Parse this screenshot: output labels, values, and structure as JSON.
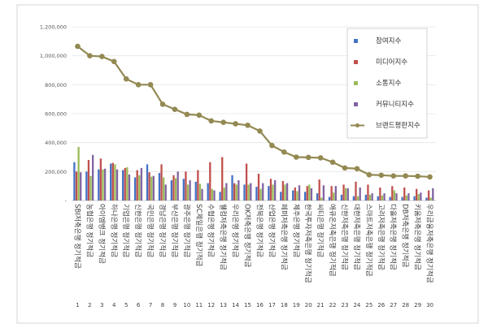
{
  "chart_data": {
    "type": "bar",
    "ylim": [
      0,
      1200000
    ],
    "y_ticks": [
      0,
      200000,
      400000,
      600000,
      800000,
      1000000,
      1200000
    ],
    "y_tick_labels": [
      "-",
      "200,000",
      "400,000",
      "600,000",
      "800,000",
      "1,000,000",
      "1,200,000"
    ],
    "grid": "horizontal",
    "legend_position": "right",
    "categories": [
      "SBI저축은행 정기적금",
      "농협은행 정기적금",
      "아이엠뱅크 정기적금",
      "하나은행 정기적금",
      "기업은행 정기적금",
      "신한은행 정기적금",
      "국민은행 정기적금",
      "경남은행 정기적금",
      "부산은행 정기적금",
      "광주은행 정기적금",
      "SC제일은행 정기적금",
      "수협은행 정기적금",
      "웰컴저축은행 정기적금",
      "우리은행 정기적금",
      "OK저축은행 정기적금",
      "전북은행 정기적금",
      "산업은행 정기적금",
      "페퍼저축은행 정기적금",
      "제주은행 정기적금",
      "한국투자저축은행 정기적금",
      "씨티은행 정기적금",
      "애큐온저축은행 정기적금",
      "신한저축은행 정기적금",
      "대한저축은행 정기적금",
      "스마트저축은행 정기적금",
      "고려저축은행 정기적금",
      "다올저축은행 정기적금",
      "DB저축은행 정기적금",
      "키움저축은행 정기적금",
      "우리금융저축은행 정기적금"
    ],
    "category_numbers": [
      "1",
      "2",
      "3",
      "4",
      "5",
      "6",
      "7",
      "8",
      "9",
      "10",
      "11",
      "12",
      "13",
      "14",
      "15",
      "16",
      "17",
      "18",
      "19",
      "20",
      "21",
      "22",
      "23",
      "24",
      "25",
      "26",
      "27",
      "28",
      "29",
      "30"
    ],
    "series": [
      {
        "name": "참여지수",
        "color": "#4472c4",
        "kind": "bar",
        "values": [
          265000,
          200000,
          215000,
          255000,
          210000,
          160000,
          250000,
          190000,
          140000,
          150000,
          130000,
          120000,
          60000,
          175000,
          110000,
          95000,
          100000,
          60000,
          70000,
          60000,
          50000,
          25000,
          40000,
          30000,
          40000,
          30000,
          25000,
          25000,
          30000,
          20000
        ]
      },
      {
        "name": "미디어지수",
        "color": "#c0504d",
        "kind": "bar",
        "values": [
          200000,
          280000,
          290000,
          260000,
          225000,
          210000,
          195000,
          250000,
          175000,
          200000,
          210000,
          265000,
          300000,
          120000,
          255000,
          185000,
          150000,
          135000,
          90000,
          100000,
          145000,
          100000,
          110000,
          130000,
          110000,
          90000,
          100000,
          90000,
          80000,
          70000
        ]
      },
      {
        "name": "소통지수",
        "color": "#9bbb59",
        "kind": "bar",
        "values": [
          370000,
          170000,
          215000,
          250000,
          230000,
          175000,
          165000,
          160000,
          155000,
          110000,
          115000,
          80000,
          90000,
          110000,
          110000,
          80000,
          110000,
          110000,
          65000,
          110000,
          20000,
          55000,
          85000,
          30000,
          40000,
          35000,
          70000,
          35000,
          45000,
          20000
        ]
      },
      {
        "name": "커뮤니티지수",
        "color": "#8064a2",
        "kind": "bar",
        "values": [
          195000,
          315000,
          220000,
          215000,
          180000,
          225000,
          170000,
          110000,
          200000,
          140000,
          80000,
          70000,
          120000,
          140000,
          120000,
          120000,
          140000,
          120000,
          105000,
          85000,
          105000,
          100000,
          85000,
          90000,
          50000,
          50000,
          50000,
          50000,
          55000,
          85000
        ]
      },
      {
        "name": "브랜드평판지수",
        "color": "#938953",
        "kind": "line",
        "values": [
          1065000,
          1000000,
          995000,
          960000,
          840000,
          800000,
          800000,
          665000,
          630000,
          595000,
          590000,
          550000,
          540000,
          530000,
          520000,
          480000,
          380000,
          335000,
          300000,
          298000,
          295000,
          265000,
          225000,
          220000,
          178000,
          175000,
          170000,
          170000,
          168000,
          163000
        ]
      }
    ]
  }
}
